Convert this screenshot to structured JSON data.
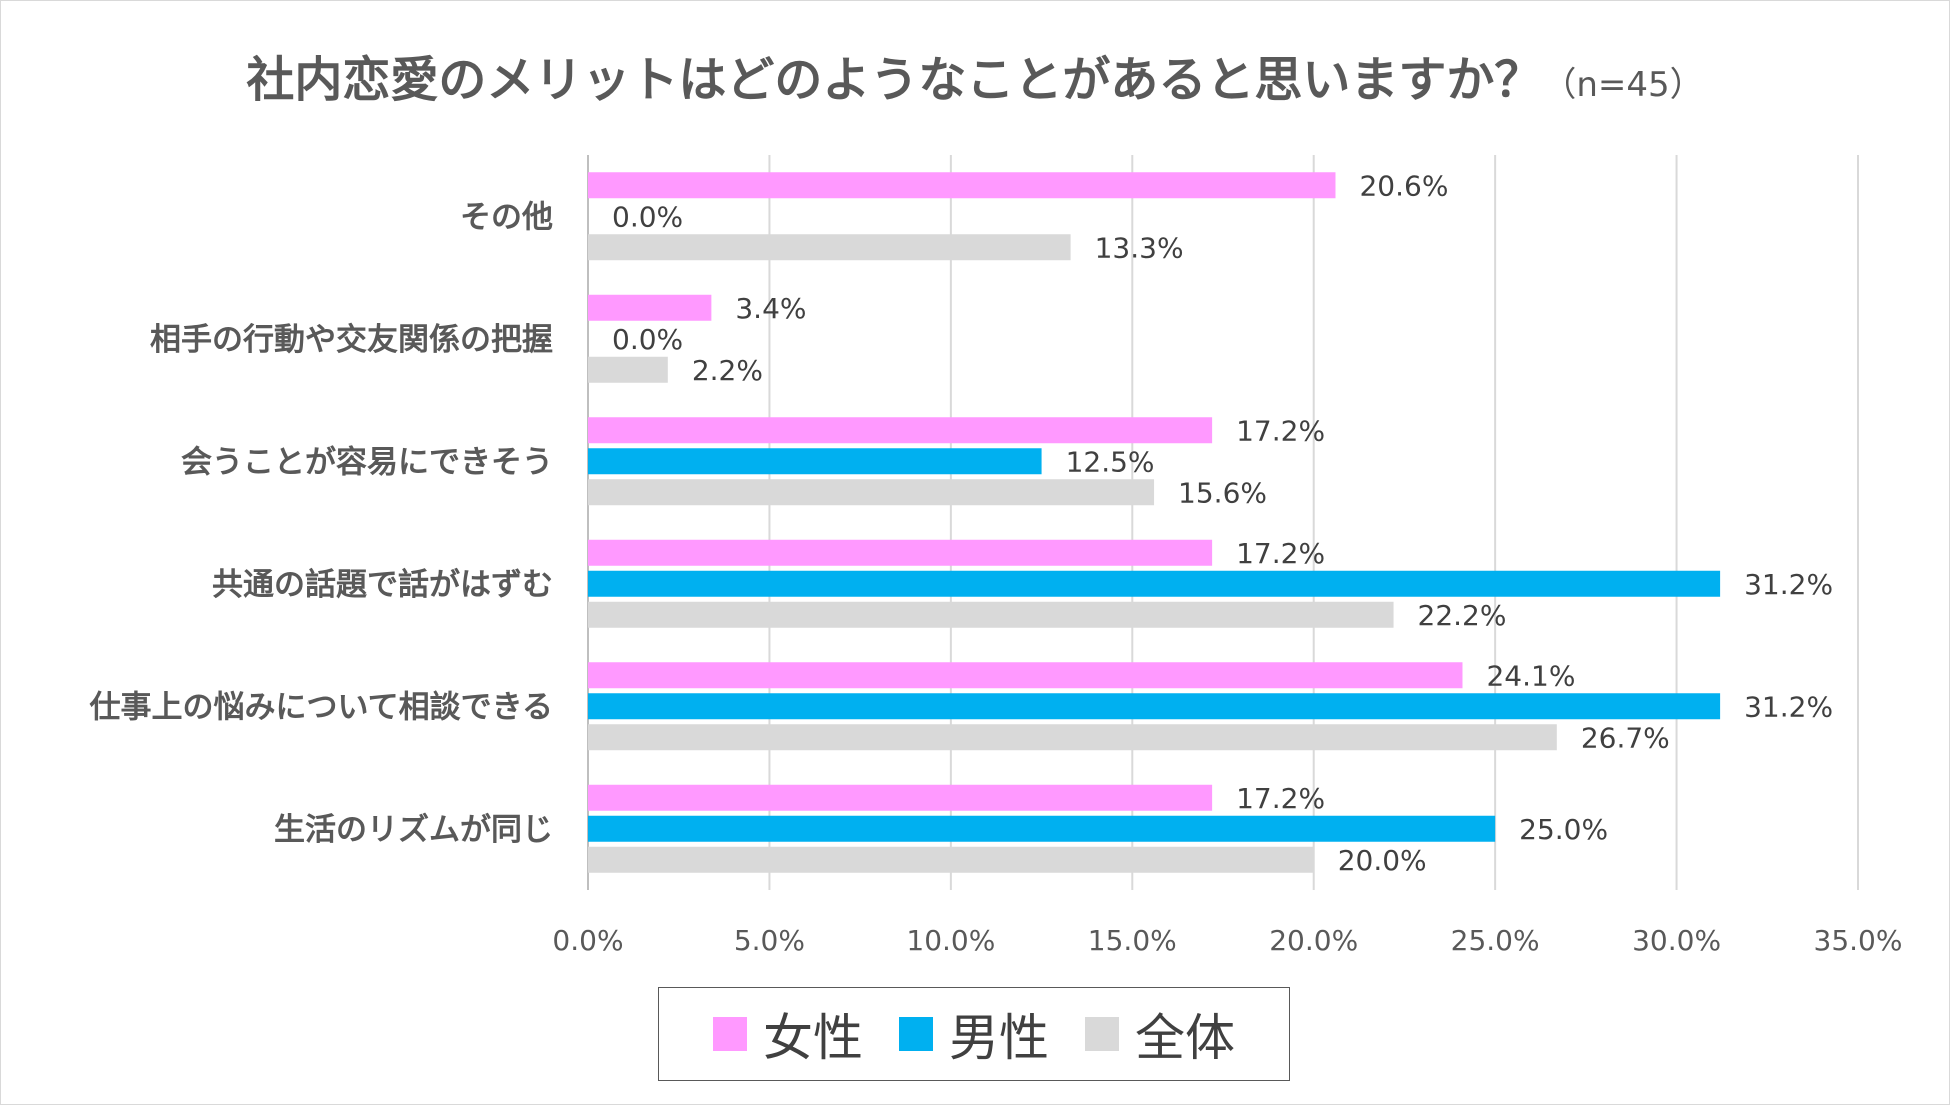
{
  "title": "社内恋愛のメリットはどのようなことがあると思いますか？",
  "title_note": "（n=45）",
  "chart_data": {
    "type": "bar",
    "orientation": "horizontal",
    "categories": [
      "その他",
      "相手の行動や交友関係の把握",
      "会うことが容易にできそう",
      "共通の話題で話がはずむ",
      "仕事上の悩みについて相談できる",
      "生活のリズムが同じ"
    ],
    "series": [
      {
        "name": "女性",
        "color": "#ff99ff",
        "values": [
          20.6,
          3.4,
          17.2,
          17.2,
          24.1,
          17.2
        ],
        "labels": [
          "20.6%",
          "3.4%",
          "17.2%",
          "17.2%",
          "24.1%",
          "17.2%"
        ]
      },
      {
        "name": "男性",
        "color": "#00b0f0",
        "values": [
          0.0,
          0.0,
          12.5,
          31.2,
          31.2,
          25.0
        ],
        "labels": [
          "0.0%",
          "0.0%",
          "12.5%",
          "31.2%",
          "31.2%",
          "25.0%"
        ]
      },
      {
        "name": "全体",
        "color": "#d9d9d9",
        "values": [
          13.3,
          2.2,
          15.6,
          22.2,
          26.7,
          20.0
        ],
        "labels": [
          "13.3%",
          "2.2%",
          "15.6%",
          "22.2%",
          "26.7%",
          "20.0%"
        ]
      }
    ],
    "xlim": [
      0,
      35
    ],
    "xticks": [
      "0.0%",
      "5.0%",
      "10.0%",
      "15.0%",
      "20.0%",
      "25.0%",
      "30.0%",
      "35.0%"
    ],
    "grid": true,
    "legend_position": "bottom"
  }
}
